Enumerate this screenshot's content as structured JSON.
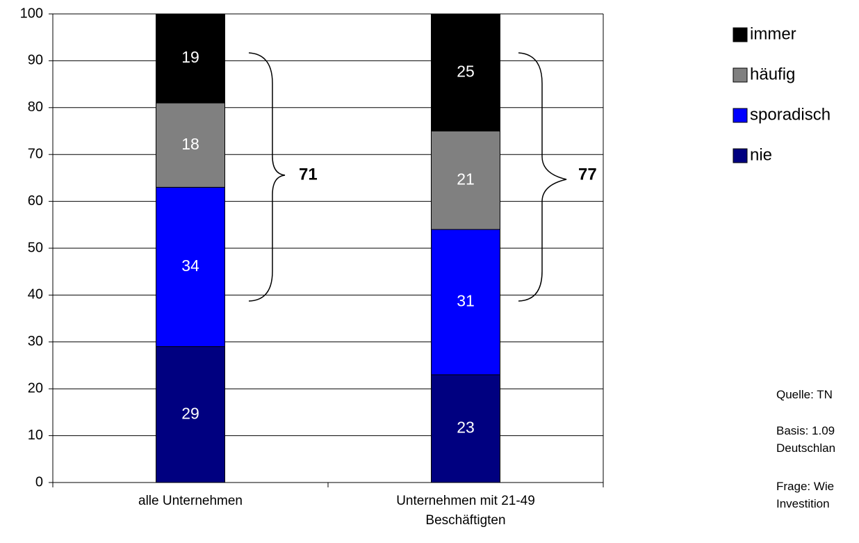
{
  "chart_data": {
    "type": "stacked_bar",
    "categories": [
      "alle Unternehmen",
      "Unternehmen mit 21-49 Beschäftigten"
    ],
    "series": [
      {
        "name": "nie",
        "color": "#000080",
        "values": [
          29,
          23
        ]
      },
      {
        "name": "sporadisch",
        "color": "#0000ff",
        "values": [
          34,
          31
        ]
      },
      {
        "name": "häufig",
        "color": "#808080",
        "values": [
          18,
          21
        ]
      },
      {
        "name": "immer",
        "color": "#000000",
        "values": [
          19,
          25
        ]
      }
    ],
    "brace_labels": [
      71,
      77
    ],
    "ylim": [
      0,
      100
    ],
    "yticks": [
      0,
      10,
      20,
      30,
      40,
      50,
      60,
      70,
      80,
      90,
      100
    ],
    "grid": true,
    "legend": "right",
    "notes": [
      "Quelle: TN",
      "Basis: 1.09",
      "Deutschlan",
      "Frage: Wie",
      "Investition"
    ]
  }
}
